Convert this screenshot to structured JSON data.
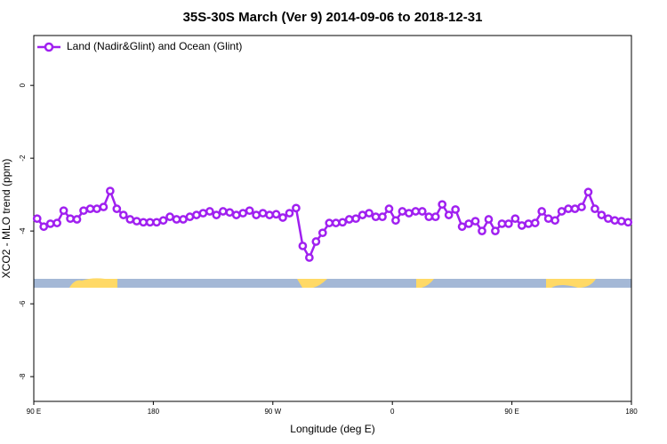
{
  "chart_data": {
    "type": "line",
    "title": "35S-30S March (Ver 9)   2014-09-06 to 2018-12-31",
    "x_label": "Longitude (deg E)",
    "y_label": "XCO2 - MLO trend (ppm)",
    "x": [
      92.5,
      97.5,
      102.5,
      107.5,
      112.5,
      117.5,
      122.5,
      127.5,
      132.5,
      137.5,
      142.5,
      147.5,
      152.5,
      157.5,
      162.5,
      167.5,
      172.5,
      177.5,
      182.5,
      187.5,
      192.5,
      197.5,
      202.5,
      207.5,
      212.5,
      217.5,
      222.5,
      227.5,
      232.5,
      237.5,
      242.5,
      247.5,
      252.5,
      257.5,
      262.5,
      267.5,
      272.5,
      277.5,
      282.5,
      287.5,
      292.5,
      297.5,
      302.5,
      307.5,
      312.5,
      317.5,
      322.5,
      327.5,
      332.5,
      337.5,
      342.5,
      347.5,
      352.5,
      357.5,
      362.5,
      367.5,
      372.5,
      377.5,
      382.5,
      387.5,
      392.5,
      397.5,
      402.5,
      407.5,
      412.5,
      417.5,
      422.5,
      427.5,
      432.5,
      437.5,
      442.5,
      447.5,
      452.5,
      457.5,
      462.5,
      467.5,
      472.5,
      477.5,
      482.5,
      487.5,
      492.5,
      497.5,
      502.5,
      507.5,
      512.5,
      517.5,
      522.5,
      527.5,
      532.5,
      537.5
    ],
    "series": [
      {
        "name": "Land (Nadir&Glint) and Ocean (Glint)",
        "color": "#a020f0",
        "values": [
          -3.66,
          -3.88,
          -3.8,
          -3.78,
          -3.44,
          -3.66,
          -3.68,
          -3.44,
          -3.39,
          -3.39,
          -3.34,
          -2.9,
          -3.39,
          -3.56,
          -3.68,
          -3.73,
          -3.76,
          -3.76,
          -3.76,
          -3.71,
          -3.61,
          -3.68,
          -3.68,
          -3.61,
          -3.56,
          -3.51,
          -3.46,
          -3.56,
          -3.46,
          -3.49,
          -3.56,
          -3.51,
          -3.44,
          -3.56,
          -3.51,
          -3.56,
          -3.54,
          -3.63,
          -3.51,
          -3.37,
          -4.41,
          -4.73,
          -4.29,
          -4.05,
          -3.78,
          -3.78,
          -3.76,
          -3.68,
          -3.66,
          -3.56,
          -3.51,
          -3.61,
          -3.61,
          -3.39,
          -3.71,
          -3.46,
          -3.51,
          -3.46,
          -3.46,
          -3.61,
          -3.61,
          -3.27,
          -3.56,
          -3.41,
          -3.88,
          -3.8,
          -3.73,
          -4.0,
          -3.68,
          -4.0,
          -3.8,
          -3.8,
          -3.66,
          -3.85,
          -3.8,
          -3.78,
          -3.46,
          -3.66,
          -3.71,
          -3.46,
          -3.39,
          -3.39,
          -3.34,
          -2.93,
          -3.39,
          -3.56,
          -3.66,
          -3.71,
          -3.73,
          -3.76
        ]
      }
    ],
    "xlim": [
      90,
      540
    ],
    "xticks": [
      {
        "value": 90,
        "label": "90 E"
      },
      {
        "value": 180,
        "label": "180"
      },
      {
        "value": 270,
        "label": "90 W"
      },
      {
        "value": 360,
        "label": "0"
      },
      {
        "value": 450,
        "label": "90 E"
      },
      {
        "value": 540,
        "label": "180"
      }
    ],
    "ylim": [
      -8.68,
      1.37
    ],
    "yticks": [
      0,
      -2,
      -4,
      -6,
      -8
    ],
    "legend": "top-left"
  }
}
